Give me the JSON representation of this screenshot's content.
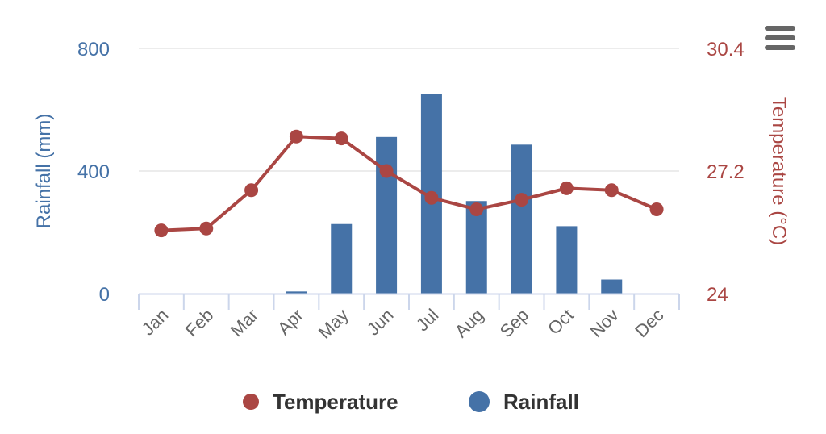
{
  "chart_data": {
    "type": "bar+line",
    "categories": [
      "Jan",
      "Feb",
      "Mar",
      "Apr",
      "May",
      "Jun",
      "Jul",
      "Aug",
      "Sep",
      "Oct",
      "Nov",
      "Dec"
    ],
    "series": [
      {
        "name": "Rainfall",
        "type": "bar",
        "axis": "left",
        "color": "#4572a7",
        "values": [
          0,
          0,
          0,
          7,
          227,
          511,
          650,
          302,
          486,
          220,
          46,
          0
        ]
      },
      {
        "name": "Temperature",
        "type": "line",
        "axis": "right",
        "color": "#aa4643",
        "values": [
          25.65,
          25.7,
          26.7,
          28.1,
          28.05,
          27.2,
          26.5,
          26.2,
          26.45,
          26.75,
          26.7,
          26.2
        ]
      }
    ],
    "left_axis": {
      "title": "Rainfall (mm)",
      "min": 0,
      "max": 800,
      "ticks": [
        "0",
        "400",
        "800"
      ]
    },
    "right_axis": {
      "title": "Temperature (°C)",
      "min": 24,
      "max": 30.4,
      "ticks": [
        "24",
        "27.2",
        "30.4"
      ]
    },
    "grid": true,
    "legend": {
      "position": "bottom-center",
      "items": [
        "Temperature",
        "Rainfall"
      ]
    }
  },
  "colors": {
    "rainfall": "#4572a7",
    "temperature": "#aa4643",
    "grid": "#e6e6e6",
    "axis": "#ccd6eb",
    "menu": "#666666"
  },
  "menu_icon": "hamburger-menu-icon"
}
